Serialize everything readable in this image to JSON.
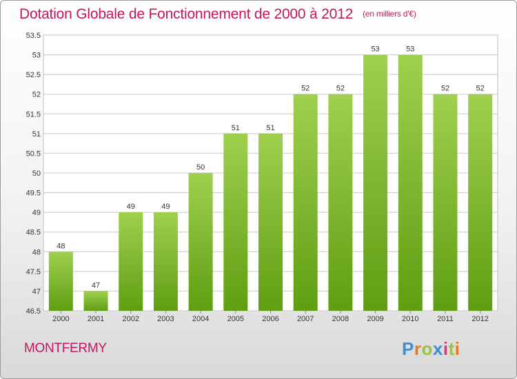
{
  "title": "Dotation Globale de Fonctionnement de 2000 à 2012",
  "unit": "(en milliers d'€)",
  "commune": "MONTFERMY",
  "logo": {
    "text": "Proxiti",
    "colors": [
      "#3b8fd4",
      "#e8781e",
      "#9bc53d",
      "#3b8fd4",
      "#d63c6e",
      "#9bc53d",
      "#e8781e"
    ]
  },
  "colors": {
    "title": "#c2185b",
    "bar_light": "#9fd04f",
    "bar_dark": "#5f9e12",
    "grid": "#c8c8c8"
  },
  "chart_data": {
    "type": "bar",
    "categories": [
      "2000",
      "2001",
      "2002",
      "2003",
      "2004",
      "2005",
      "2006",
      "2007",
      "2008",
      "2009",
      "2010",
      "2011",
      "2012"
    ],
    "values": [
      48,
      47,
      49,
      49,
      50,
      51,
      51,
      52,
      52,
      53,
      53,
      52,
      52
    ],
    "data_labels": [
      "48",
      "47",
      "49",
      "49",
      "50",
      "51",
      "51",
      "52",
      "52",
      "53",
      "53",
      "52",
      "52"
    ],
    "ylim": [
      46.5,
      53.5
    ],
    "yticks": [
      46.5,
      47,
      47.5,
      48,
      48.5,
      49,
      49.5,
      50,
      50.5,
      51,
      51.5,
      52,
      52.5,
      53,
      53.5
    ],
    "ytick_labels": [
      "46.5",
      "47",
      "47.5",
      "48",
      "48.5",
      "49",
      "49.5",
      "50",
      "50.5",
      "51",
      "51.5",
      "52",
      "52.5",
      "53",
      "53.5"
    ],
    "grid": true,
    "xlabel": "",
    "ylabel": ""
  }
}
